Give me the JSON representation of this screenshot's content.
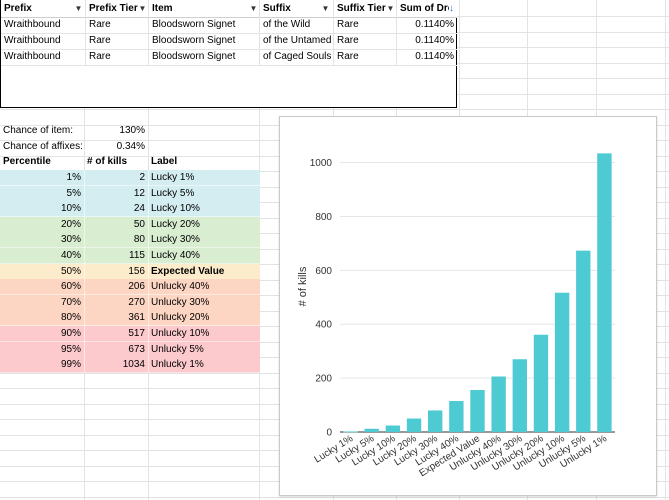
{
  "pivot": {
    "headers": [
      "Prefix",
      "Prefix Tier",
      "Item",
      "Suffix",
      "Suffix Tier",
      "Sum of Dro"
    ],
    "sort_icon": "sort-desc-arrow-icon",
    "rows": [
      [
        "Wraithbound",
        "Rare",
        "Bloodsworn Signet",
        "of the Wild",
        "Rare",
        "0.1140%"
      ],
      [
        "Wraithbound",
        "Rare",
        "Bloodsworn Signet",
        "of the Untamed",
        "Rare",
        "0.1140%"
      ],
      [
        "Wraithbound",
        "Rare",
        "Bloodsworn Signet",
        "of Caged Souls",
        "Rare",
        "0.1140%"
      ]
    ]
  },
  "stats": {
    "chance_item_label": "Chance of item:",
    "chance_item_value": "130%",
    "chance_affix_label": "Chance of affixes:",
    "chance_affix_value": "0.34%"
  },
  "percentiles": {
    "headers": [
      "Percentile",
      "# of kills",
      "Label"
    ],
    "rows": [
      {
        "pct": "1%",
        "kills": "2",
        "label": "Lucky 1%",
        "color": "#d4edf1",
        "bold": false
      },
      {
        "pct": "5%",
        "kills": "12",
        "label": "Lucky 5%",
        "color": "#d4edf1",
        "bold": false
      },
      {
        "pct": "10%",
        "kills": "24",
        "label": "Lucky 10%",
        "color": "#d4edf1",
        "bold": false
      },
      {
        "pct": "20%",
        "kills": "50",
        "label": "Lucky 20%",
        "color": "#d9edd1",
        "bold": false
      },
      {
        "pct": "30%",
        "kills": "80",
        "label": "Lucky 30%",
        "color": "#d9edd1",
        "bold": false
      },
      {
        "pct": "40%",
        "kills": "115",
        "label": "Lucky 40%",
        "color": "#d9edd1",
        "bold": false
      },
      {
        "pct": "50%",
        "kills": "156",
        "label": "Expected Value",
        "color": "#fdeccb",
        "bold": true
      },
      {
        "pct": "60%",
        "kills": "206",
        "label": "Unlucky 40%",
        "color": "#fdd6c3",
        "bold": false
      },
      {
        "pct": "70%",
        "kills": "270",
        "label": "Unlucky 30%",
        "color": "#fdd6c3",
        "bold": false
      },
      {
        "pct": "80%",
        "kills": "361",
        "label": "Unlucky 20%",
        "color": "#fdd6c3",
        "bold": false
      },
      {
        "pct": "90%",
        "kills": "517",
        "label": "Unlucky 10%",
        "color": "#fcc9cd",
        "bold": false
      },
      {
        "pct": "95%",
        "kills": "673",
        "label": "Unlucky 5%",
        "color": "#fcc9cd",
        "bold": false
      },
      {
        "pct": "99%",
        "kills": "1034",
        "label": "Unlucky 1%",
        "color": "#fcc9cd",
        "bold": false
      }
    ]
  },
  "chart_data": {
    "type": "bar",
    "title": "",
    "xlabel": "",
    "ylabel": "# of kills",
    "categories": [
      "Lucky 1%",
      "Lucky 5%",
      "Lucky 10%",
      "Lucky 20%",
      "Lucky 30%",
      "Lucky 40%",
      "Expected Value",
      "Unlucky 40%",
      "Unlucky 30%",
      "Unlucky 20%",
      "Unlucky 10%",
      "Unlucky 5%",
      "Unlucky 1%"
    ],
    "values": [
      2,
      12,
      24,
      50,
      80,
      115,
      156,
      206,
      270,
      361,
      517,
      673,
      1034
    ],
    "ylim": [
      0,
      1080
    ],
    "yticks": [
      0,
      200,
      400,
      600,
      800,
      1000
    ],
    "bar_color": "#4ecad3",
    "grid": true,
    "legend": "none"
  }
}
